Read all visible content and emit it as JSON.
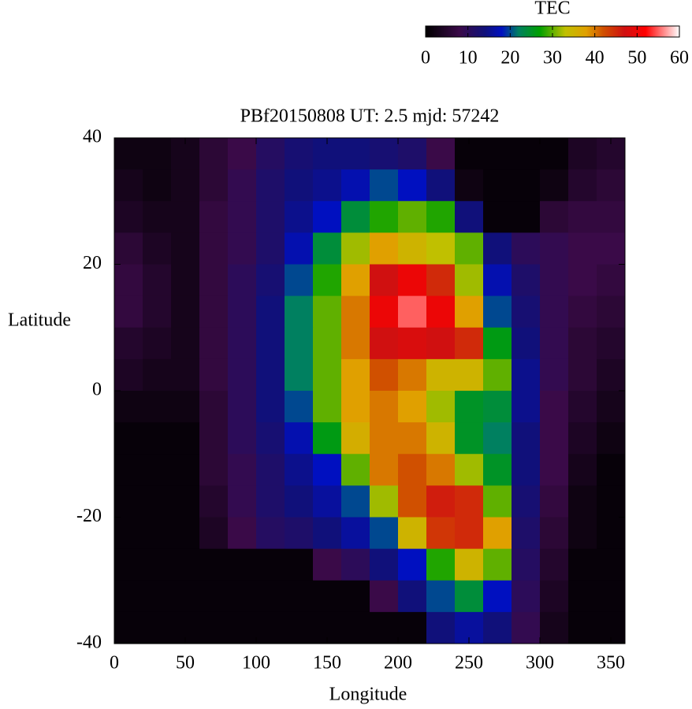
{
  "chart_data": {
    "type": "heatmap",
    "title": "PBf20150808  UT: 2.5  mjd: 57242",
    "xlabel": "Longitude",
    "ylabel": "Latitude",
    "x": [
      10,
      30,
      50,
      70,
      90,
      110,
      130,
      150,
      170,
      190,
      210,
      230,
      250,
      270,
      290,
      310,
      330,
      350
    ],
    "y": [
      37.5,
      32.5,
      27.5,
      22.5,
      17.5,
      12.5,
      7.5,
      2.5,
      -2.5,
      -7.5,
      -12.5,
      -17.5,
      -22.5,
      -27.5,
      -32.5,
      -37.5
    ],
    "values": [
      [
        2,
        2,
        3,
        6,
        8,
        11,
        13,
        14,
        14,
        13,
        12,
        8,
        1,
        1,
        1,
        1,
        4,
        5
      ],
      [
        3,
        2,
        3,
        6,
        9,
        12,
        14,
        15,
        17,
        20,
        18,
        14,
        2,
        1,
        1,
        2,
        5,
        6
      ],
      [
        4,
        3,
        3,
        7,
        9,
        12,
        15,
        18,
        24,
        28,
        30,
        28,
        14,
        1,
        1,
        6,
        7,
        7
      ],
      [
        6,
        4,
        3,
        7,
        9,
        12,
        17,
        24,
        32,
        38,
        35,
        33,
        30,
        14,
        10,
        9,
        8,
        8
      ],
      [
        7,
        5,
        3,
        7,
        10,
        13,
        20,
        28,
        38,
        47,
        50,
        45,
        32,
        17,
        12,
        9,
        8,
        7
      ],
      [
        7,
        5,
        3,
        7,
        10,
        14,
        22,
        30,
        40,
        50,
        55,
        50,
        38,
        20,
        13,
        9,
        7,
        6
      ],
      [
        5,
        4,
        3,
        7,
        10,
        14,
        22,
        30,
        40,
        47,
        48,
        47,
        45,
        26,
        14,
        9,
        6,
        5
      ],
      [
        4,
        3,
        3,
        7,
        10,
        14,
        22,
        30,
        38,
        42,
        40,
        35,
        35,
        30,
        15,
        9,
        6,
        4
      ],
      [
        2,
        2,
        2,
        6,
        10,
        14,
        20,
        30,
        38,
        40,
        38,
        32,
        25,
        24,
        15,
        8,
        5,
        3
      ],
      [
        1,
        1,
        1,
        6,
        10,
        13,
        17,
        26,
        36,
        40,
        40,
        35,
        25,
        22,
        14,
        8,
        4,
        2
      ],
      [
        1,
        1,
        1,
        6,
        9,
        12,
        15,
        18,
        30,
        40,
        42,
        40,
        32,
        25,
        14,
        8,
        3,
        1
      ],
      [
        1,
        1,
        1,
        5,
        9,
        12,
        14,
        16,
        20,
        32,
        42,
        46,
        45,
        30,
        13,
        7,
        2,
        1
      ],
      [
        1,
        1,
        1,
        4,
        8,
        11,
        12,
        14,
        16,
        20,
        35,
        44,
        45,
        38,
        12,
        6,
        2,
        1
      ],
      [
        1,
        1,
        1,
        1,
        1,
        1,
        1,
        8,
        10,
        14,
        18,
        28,
        35,
        30,
        11,
        5,
        1,
        1
      ],
      [
        1,
        1,
        1,
        1,
        1,
        1,
        1,
        1,
        1,
        8,
        14,
        20,
        24,
        18,
        10,
        4,
        1,
        1
      ],
      [
        1,
        1,
        1,
        1,
        1,
        1,
        1,
        1,
        1,
        1,
        1,
        14,
        16,
        14,
        9,
        3,
        1,
        1
      ]
    ],
    "xlim": [
      0,
      360
    ],
    "xticks": [
      0,
      50,
      100,
      150,
      200,
      250,
      300,
      350
    ],
    "ylim": [
      -40,
      40
    ],
    "yticks": [
      -40,
      -20,
      0,
      20,
      40
    ],
    "colorbar": {
      "label": "TEC",
      "lim": [
        0,
        60
      ],
      "ticks": [
        0,
        10,
        20,
        30,
        40,
        50,
        60
      ],
      "colors": [
        [
          0,
          "#000000"
        ],
        [
          8,
          "#3a0a48"
        ],
        [
          14,
          "#10107a"
        ],
        [
          18,
          "#0010c0"
        ],
        [
          22,
          "#008060"
        ],
        [
          27,
          "#00a000"
        ],
        [
          33,
          "#c0c000"
        ],
        [
          38,
          "#e0a000"
        ],
        [
          42,
          "#d05000"
        ],
        [
          47,
          "#d01010"
        ],
        [
          52,
          "#ff0000"
        ],
        [
          60,
          "#ffffff"
        ]
      ]
    }
  }
}
